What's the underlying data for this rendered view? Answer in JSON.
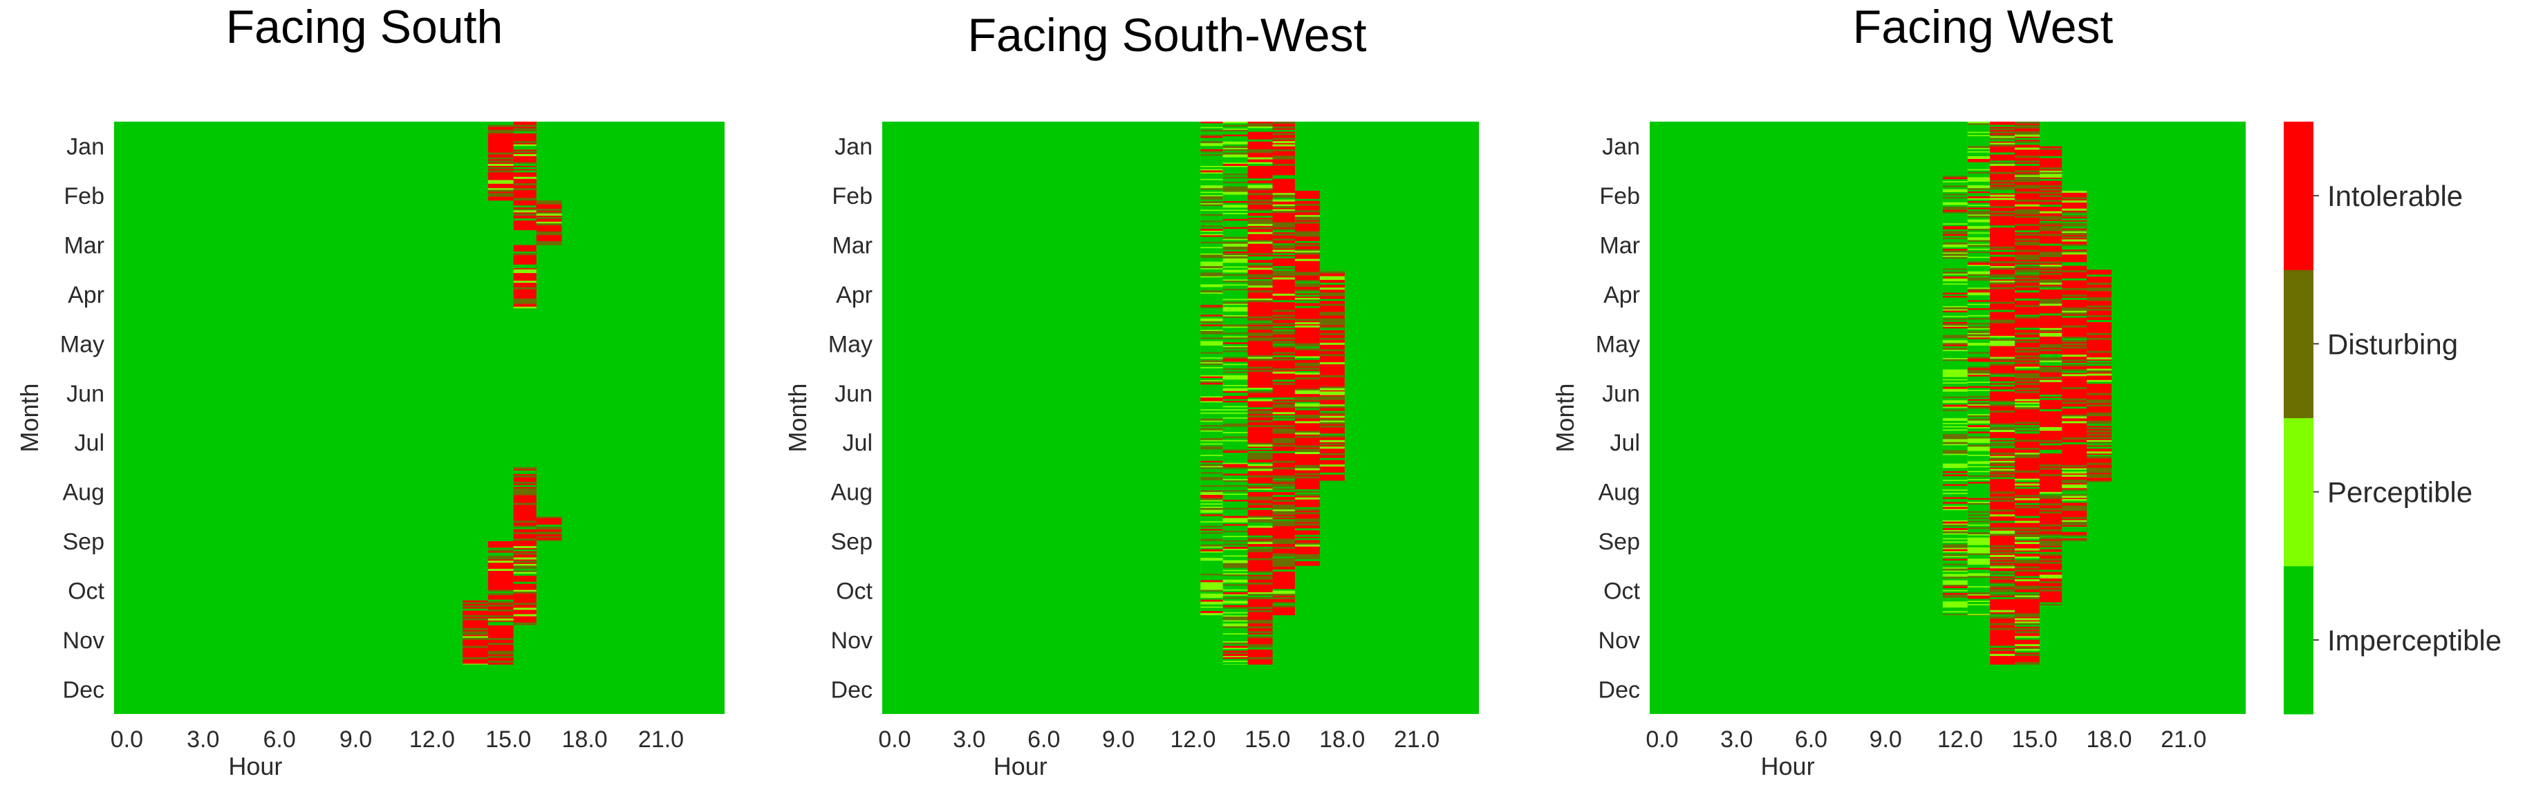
{
  "colors": {
    "Imperceptible": "#00c800",
    "Perceptible": "#80ff00",
    "Disturbing": "#6b6e00",
    "Intolerable": "#ff0000"
  },
  "chart_data": [
    {
      "type": "heatmap",
      "title": "Facing South",
      "xlabel": "Hour",
      "ylabel": "Month",
      "xticks": [
        "0.0",
        "3.0",
        "6.0",
        "9.0",
        "12.0",
        "15.0",
        "18.0",
        "21.0"
      ],
      "yticks": [
        "Jan",
        "Feb",
        "Mar",
        "Apr",
        "May",
        "Jun",
        "Jul",
        "Aug",
        "Sep",
        "Oct",
        "Nov",
        "Dec"
      ],
      "x_range": [
        0,
        24
      ],
      "background_level": "Imperceptible",
      "regions": [
        {
          "month_start": 0.0,
          "month_end": 1.6,
          "hour_start": 14.7,
          "hour_end": 15.7,
          "level": "Intolerable"
        },
        {
          "month_start": 0.0,
          "month_end": 1.6,
          "hour_start": 15.7,
          "hour_end": 16.6,
          "level": "Intolerable"
        },
        {
          "month_start": 1.6,
          "month_end": 2.2,
          "hour_start": 15.7,
          "hour_end": 16.6,
          "level": "Intolerable"
        },
        {
          "month_start": 1.6,
          "month_end": 2.5,
          "hour_start": 16.6,
          "hour_end": 17.6,
          "level": "Intolerable"
        },
        {
          "month_start": 2.5,
          "month_end": 3.8,
          "hour_start": 15.7,
          "hour_end": 16.6,
          "level": "Intolerable"
        },
        {
          "month_start": 7.0,
          "month_end": 8.7,
          "hour_start": 15.7,
          "hour_end": 16.6,
          "level": "Intolerable"
        },
        {
          "month_start": 8.0,
          "month_end": 8.5,
          "hour_start": 16.6,
          "hour_end": 17.6,
          "level": "Disturbing"
        },
        {
          "month_start": 8.5,
          "month_end": 10.2,
          "hour_start": 14.7,
          "hour_end": 15.7,
          "level": "Intolerable"
        },
        {
          "month_start": 8.5,
          "month_end": 10.2,
          "hour_start": 15.7,
          "hour_end": 16.6,
          "level": "Intolerable"
        },
        {
          "month_start": 9.7,
          "month_end": 11.0,
          "hour_start": 13.7,
          "hour_end": 14.7,
          "level": "Intolerable"
        },
        {
          "month_start": 10.0,
          "month_end": 11.0,
          "hour_start": 14.7,
          "hour_end": 15.7,
          "level": "Intolerable"
        }
      ]
    },
    {
      "type": "heatmap",
      "title": "Facing South-West",
      "xlabel": "Hour",
      "ylabel": "Month",
      "xticks": [
        "0.0",
        "3.0",
        "6.0",
        "9.0",
        "12.0",
        "15.0",
        "18.0",
        "21.0"
      ],
      "yticks": [
        "Jan",
        "Feb",
        "Mar",
        "Apr",
        "May",
        "Jun",
        "Jul",
        "Aug",
        "Sep",
        "Oct",
        "Nov",
        "Dec"
      ],
      "x_range": [
        0,
        24
      ],
      "background_level": "Imperceptible",
      "regions": [
        {
          "month_start": 0.0,
          "month_end": 9.0,
          "hour_start": 12.8,
          "hour_end": 13.7,
          "level": "Perceptible"
        },
        {
          "month_start": 0.0,
          "month_end": 11.0,
          "hour_start": 13.7,
          "hour_end": 14.7,
          "level": "Perceptible"
        },
        {
          "month_start": 0.0,
          "month_end": 11.0,
          "hour_start": 14.7,
          "hour_end": 15.7,
          "level": "Intolerable"
        },
        {
          "month_start": 0.0,
          "month_end": 10.0,
          "hour_start": 15.7,
          "hour_end": 16.6,
          "level": "Intolerable"
        },
        {
          "month_start": 1.4,
          "month_end": 9.0,
          "hour_start": 16.6,
          "hour_end": 17.6,
          "level": "Intolerable"
        },
        {
          "month_start": 3.0,
          "month_end": 7.3,
          "hour_start": 17.6,
          "hour_end": 18.6,
          "level": "Intolerable"
        },
        {
          "month_start": 8.5,
          "month_end": 10.0,
          "hour_start": 12.8,
          "hour_end": 13.7,
          "level": "Perceptible"
        }
      ]
    },
    {
      "type": "heatmap",
      "title": "Facing West",
      "xlabel": "Hour",
      "ylabel": "Month",
      "xticks": [
        "0.0",
        "3.0",
        "6.0",
        "9.0",
        "12.0",
        "15.0",
        "18.0",
        "21.0"
      ],
      "yticks": [
        "Jan",
        "Feb",
        "Mar",
        "Apr",
        "May",
        "Jun",
        "Jul",
        "Aug",
        "Sep",
        "Oct",
        "Nov",
        "Dec"
      ],
      "x_range": [
        0,
        24
      ],
      "background_level": "Imperceptible",
      "regions": [
        {
          "month_start": 1.0,
          "month_end": 10.0,
          "hour_start": 11.8,
          "hour_end": 12.8,
          "level": "Perceptible"
        },
        {
          "month_start": 0.0,
          "month_end": 10.0,
          "hour_start": 12.8,
          "hour_end": 13.7,
          "level": "Perceptible"
        },
        {
          "month_start": 0.0,
          "month_end": 11.0,
          "hour_start": 13.7,
          "hour_end": 14.7,
          "level": "Intolerable"
        },
        {
          "month_start": 0.0,
          "month_end": 11.0,
          "hour_start": 14.7,
          "hour_end": 15.7,
          "level": "Intolerable"
        },
        {
          "month_start": 0.5,
          "month_end": 9.8,
          "hour_start": 15.7,
          "hour_end": 16.6,
          "level": "Intolerable"
        },
        {
          "month_start": 1.4,
          "month_end": 8.5,
          "hour_start": 16.6,
          "hour_end": 17.6,
          "level": "Intolerable"
        },
        {
          "month_start": 3.0,
          "month_end": 7.3,
          "hour_start": 17.6,
          "hour_end": 18.6,
          "level": "Intolerable"
        }
      ]
    }
  ],
  "colorbar": {
    "levels": [
      "Imperceptible",
      "Perceptible",
      "Disturbing",
      "Intolerable"
    ]
  }
}
